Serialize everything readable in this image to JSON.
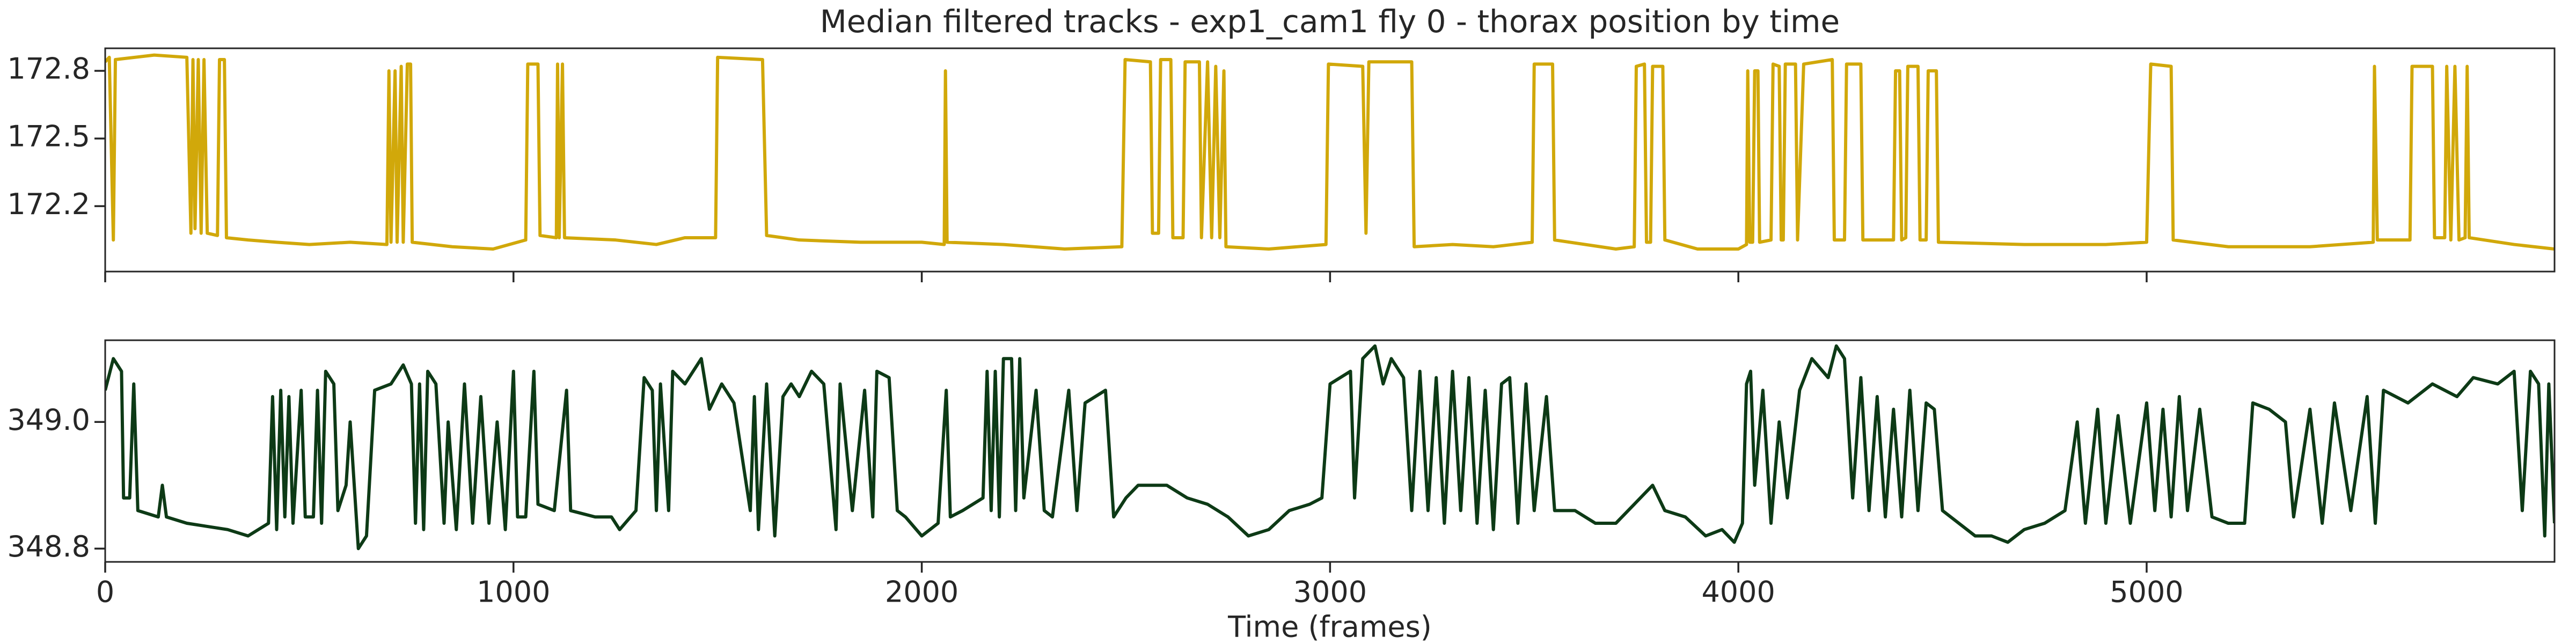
{
  "chart_data": [
    {
      "type": "line",
      "title": "Median filtered tracks - exp1_cam1 fly 0 - thorax position by time",
      "x": [
        0,
        10,
        20,
        25,
        120,
        200,
        210,
        215,
        220,
        228,
        235,
        242,
        250,
        275,
        280,
        292,
        297,
        350,
        420,
        500,
        600,
        690,
        695,
        700,
        710,
        715,
        725,
        730,
        740,
        748,
        752,
        850,
        950,
        1030,
        1035,
        1060,
        1065,
        1105,
        1108,
        1112,
        1120,
        1125,
        1250,
        1350,
        1420,
        1495,
        1500,
        1610,
        1620,
        1700,
        1850,
        2000,
        2055,
        2058,
        2062,
        2200,
        2350,
        2490,
        2498,
        2560,
        2565,
        2580,
        2585,
        2610,
        2615,
        2640,
        2645,
        2680,
        2685,
        2700,
        2710,
        2720,
        2730,
        2740,
        2745,
        2850,
        2990,
        2996,
        3080,
        3088,
        3095,
        3200,
        3206,
        3300,
        3400,
        3495,
        3500,
        3545,
        3550,
        3700,
        3745,
        3750,
        3770,
        3775,
        3785,
        3790,
        3815,
        3820,
        3900,
        4000,
        4020,
        4023,
        4028,
        4035,
        4040,
        4048,
        4052,
        4080,
        4085,
        4100,
        4105,
        4110,
        4115,
        4140,
        4145,
        4160,
        4230,
        4235,
        4260,
        4265,
        4300,
        4305,
        4380,
        4385,
        4395,
        4400,
        4410,
        4415,
        4440,
        4445,
        4460,
        4465,
        4485,
        4490,
        4700,
        4900,
        5000,
        5010,
        5060,
        5065,
        5200,
        5400,
        5555,
        5558,
        5565,
        5645,
        5650,
        5700,
        5705,
        5730,
        5735,
        5745,
        5755,
        5765,
        5780,
        5785,
        5790,
        5900,
        5999
      ],
      "series": [
        {
          "color": "#d1a80a",
          "values": [
            172.84,
            172.86,
            172.05,
            172.85,
            172.87,
            172.86,
            172.08,
            172.85,
            172.1,
            172.85,
            172.08,
            172.85,
            172.08,
            172.07,
            172.85,
            172.85,
            172.06,
            172.05,
            172.04,
            172.03,
            172.04,
            172.03,
            172.8,
            172.04,
            172.8,
            172.04,
            172.82,
            172.04,
            172.83,
            172.83,
            172.04,
            172.02,
            172.01,
            172.05,
            172.83,
            172.83,
            172.07,
            172.06,
            172.83,
            172.06,
            172.83,
            172.06,
            172.05,
            172.03,
            172.06,
            172.06,
            172.86,
            172.85,
            172.07,
            172.05,
            172.04,
            172.04,
            172.03,
            172.8,
            172.04,
            172.03,
            172.01,
            172.02,
            172.85,
            172.84,
            172.08,
            172.08,
            172.85,
            172.85,
            172.06,
            172.06,
            172.84,
            172.84,
            172.06,
            172.84,
            172.06,
            172.82,
            172.06,
            172.8,
            172.02,
            172.01,
            172.03,
            172.83,
            172.82,
            172.08,
            172.84,
            172.84,
            172.02,
            172.03,
            172.02,
            172.04,
            172.83,
            172.83,
            172.05,
            172.01,
            172.02,
            172.82,
            172.83,
            172.04,
            172.04,
            172.82,
            172.82,
            172.05,
            172.01,
            172.01,
            172.03,
            172.8,
            172.04,
            172.04,
            172.8,
            172.8,
            172.04,
            172.05,
            172.83,
            172.82,
            172.05,
            172.05,
            172.83,
            172.83,
            172.05,
            172.83,
            172.85,
            172.05,
            172.05,
            172.83,
            172.83,
            172.05,
            172.05,
            172.8,
            172.8,
            172.05,
            172.06,
            172.82,
            172.82,
            172.05,
            172.05,
            172.8,
            172.8,
            172.04,
            172.03,
            172.03,
            172.04,
            172.83,
            172.82,
            172.05,
            172.02,
            172.02,
            172.04,
            172.82,
            172.05,
            172.05,
            172.82,
            172.82,
            172.06,
            172.06,
            172.82,
            172.05,
            172.82,
            172.05,
            172.06,
            172.82,
            172.06,
            172.03,
            172.01
          ]
        }
      ],
      "xlim": [
        0,
        5999
      ],
      "xticks": [
        0,
        1000,
        2000,
        3000,
        4000,
        5000
      ],
      "ylim": [
        171.91,
        172.9
      ],
      "yticks": [
        172.2,
        172.5,
        172.8
      ]
    },
    {
      "type": "line",
      "x_label": "Time (frames)",
      "x": [
        0,
        20,
        40,
        45,
        60,
        70,
        80,
        130,
        140,
        150,
        200,
        300,
        350,
        400,
        410,
        420,
        430,
        440,
        450,
        460,
        480,
        490,
        510,
        520,
        530,
        540,
        560,
        570,
        590,
        600,
        620,
        640,
        660,
        700,
        730,
        750,
        760,
        770,
        780,
        790,
        810,
        830,
        840,
        860,
        880,
        900,
        920,
        940,
        960,
        980,
        1000,
        1010,
        1030,
        1050,
        1060,
        1100,
        1130,
        1140,
        1200,
        1240,
        1260,
        1300,
        1320,
        1340,
        1350,
        1360,
        1380,
        1390,
        1420,
        1460,
        1480,
        1510,
        1540,
        1580,
        1590,
        1600,
        1620,
        1640,
        1660,
        1680,
        1700,
        1730,
        1760,
        1790,
        1800,
        1830,
        1860,
        1880,
        1890,
        1920,
        1940,
        1960,
        2000,
        2040,
        2060,
        2070,
        2100,
        2150,
        2160,
        2170,
        2180,
        2190,
        2200,
        2220,
        2230,
        2240,
        2250,
        2280,
        2300,
        2320,
        2360,
        2380,
        2400,
        2450,
        2470,
        2500,
        2530,
        2600,
        2650,
        2700,
        2750,
        2800,
        2850,
        2900,
        2950,
        2980,
        3000,
        3050,
        3060,
        3080,
        3110,
        3130,
        3150,
        3180,
        3200,
        3220,
        3240,
        3260,
        3280,
        3300,
        3320,
        3340,
        3360,
        3380,
        3400,
        3420,
        3440,
        3460,
        3480,
        3500,
        3530,
        3550,
        3600,
        3650,
        3700,
        3760,
        3790,
        3820,
        3870,
        3920,
        3960,
        3990,
        4010,
        4020,
        4030,
        4040,
        4060,
        4080,
        4100,
        4120,
        4150,
        4180,
        4220,
        4240,
        4260,
        4280,
        4300,
        4320,
        4340,
        4360,
        4380,
        4400,
        4420,
        4440,
        4460,
        4480,
        4500,
        4540,
        4580,
        4620,
        4660,
        4700,
        4750,
        4800,
        4830,
        4850,
        4880,
        4900,
        4930,
        4960,
        5000,
        5020,
        5040,
        5060,
        5080,
        5100,
        5130,
        5160,
        5200,
        5240,
        5260,
        5300,
        5340,
        5360,
        5400,
        5430,
        5460,
        5500,
        5540,
        5560,
        5580,
        5640,
        5700,
        5760,
        5800,
        5860,
        5900,
        5920,
        5940,
        5960,
        5975,
        5985,
        5999
      ],
      "series": [
        {
          "color": "#0d3a16",
          "values": [
            349.05,
            349.1,
            349.08,
            348.88,
            348.88,
            349.06,
            348.86,
            348.85,
            348.9,
            348.85,
            348.84,
            348.83,
            348.82,
            348.84,
            349.04,
            348.83,
            349.05,
            348.85,
            349.04,
            348.84,
            349.05,
            348.85,
            348.85,
            349.05,
            348.84,
            349.08,
            349.06,
            348.86,
            348.9,
            349.0,
            348.8,
            348.82,
            349.05,
            349.06,
            349.09,
            349.06,
            348.84,
            349.06,
            348.83,
            349.08,
            349.06,
            348.84,
            349.0,
            348.83,
            349.06,
            348.84,
            349.04,
            348.84,
            349.0,
            348.83,
            349.08,
            348.85,
            348.85,
            349.08,
            348.87,
            348.86,
            349.05,
            348.86,
            348.85,
            348.85,
            348.83,
            348.86,
            349.07,
            349.05,
            348.86,
            349.06,
            348.86,
            349.08,
            349.06,
            349.1,
            349.02,
            349.06,
            349.03,
            348.86,
            349.04,
            348.83,
            349.06,
            348.82,
            349.04,
            349.06,
            349.04,
            349.08,
            349.06,
            348.83,
            349.06,
            348.86,
            349.05,
            348.85,
            349.08,
            349.07,
            348.86,
            348.85,
            348.82,
            348.84,
            349.05,
            348.85,
            348.86,
            348.88,
            349.08,
            348.86,
            349.08,
            348.85,
            349.1,
            349.1,
            348.86,
            349.1,
            348.88,
            349.05,
            348.86,
            348.85,
            349.05,
            348.86,
            349.03,
            349.05,
            348.85,
            348.88,
            348.9,
            348.9,
            348.88,
            348.87,
            348.85,
            348.82,
            348.83,
            348.86,
            348.87,
            348.88,
            349.06,
            349.08,
            348.88,
            349.1,
            349.12,
            349.06,
            349.1,
            349.07,
            348.86,
            349.08,
            348.86,
            349.07,
            348.84,
            349.08,
            348.86,
            349.07,
            348.84,
            349.05,
            348.83,
            349.06,
            349.07,
            348.84,
            349.06,
            348.86,
            349.04,
            348.86,
            348.86,
            348.84,
            348.84,
            348.88,
            348.9,
            348.86,
            348.85,
            348.82,
            348.83,
            348.81,
            348.84,
            349.06,
            349.08,
            348.9,
            349.05,
            348.84,
            349.0,
            348.88,
            349.05,
            349.1,
            349.07,
            349.12,
            349.1,
            348.88,
            349.07,
            348.86,
            349.04,
            348.85,
            349.02,
            348.85,
            349.05,
            348.86,
            349.03,
            349.02,
            348.86,
            348.84,
            348.82,
            348.82,
            348.81,
            348.83,
            348.84,
            348.86,
            349.0,
            348.84,
            349.02,
            348.84,
            349.01,
            348.84,
            349.03,
            348.86,
            349.02,
            348.85,
            349.04,
            348.86,
            349.02,
            348.85,
            348.84,
            348.84,
            349.03,
            349.02,
            349.0,
            348.85,
            349.02,
            348.84,
            349.03,
            348.86,
            349.04,
            348.84,
            349.05,
            349.03,
            349.06,
            349.04,
            349.07,
            349.06,
            349.08,
            348.86,
            349.08,
            349.06,
            348.82,
            349.06,
            348.84
          ]
        }
      ],
      "xlim": [
        0,
        5999
      ],
      "xticks": [
        0,
        1000,
        2000,
        3000,
        4000,
        5000
      ],
      "ylim": [
        348.779,
        349.129
      ],
      "yticks": [
        348.8,
        {
          "value": 349,
          "label": "349.0"
        }
      ]
    }
  ]
}
